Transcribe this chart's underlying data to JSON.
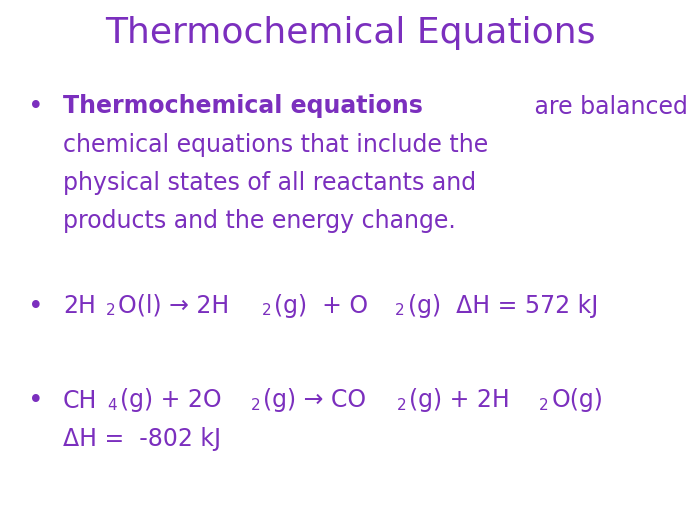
{
  "title": "Thermochemical Equations",
  "title_color": "#7B2FBE",
  "title_fontsize": 26,
  "background_color": "#FFFFFF",
  "purple_color": "#7B2FBE",
  "font_family": "Comic Sans MS",
  "text_fontsize": 17,
  "sub_fontsize": 11,
  "bold_part": "Thermochemical equations",
  "normal_part": " are balanced",
  "line2": "chemical equations that include the",
  "line3": "physical states of all reactants and",
  "line4": "products and the energy change.",
  "eq2_line2": "ΔH =  -802 kJ",
  "bullet": "•"
}
